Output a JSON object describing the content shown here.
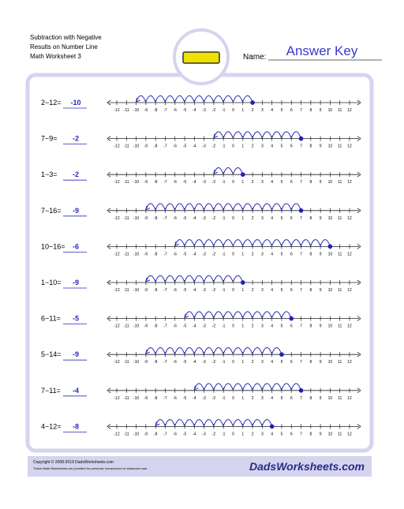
{
  "header": {
    "title_lines": [
      "Subtraction with Negative",
      "Results on Number Line",
      "Math Worksheet 3"
    ],
    "name_label": "Name:",
    "answer_key": "Answer Key"
  },
  "number_line": {
    "ticks": [
      -12,
      -11,
      -10,
      -9,
      -8,
      -7,
      -6,
      -5,
      -4,
      -3,
      -2,
      -1,
      0,
      1,
      2,
      3,
      4,
      5,
      6,
      7,
      8,
      9,
      10,
      11,
      12
    ]
  },
  "problems": [
    {
      "problem": "2−12=",
      "answer": "-10"
    },
    {
      "problem": "7−9=",
      "answer": "-2"
    },
    {
      "problem": "1−3=",
      "answer": "-2"
    },
    {
      "problem": "7−16=",
      "answer": "-9"
    },
    {
      "problem": "10−16=",
      "answer": "-6"
    },
    {
      "problem": "1−10=",
      "answer": "-9"
    },
    {
      "problem": "6−11=",
      "answer": "-5"
    },
    {
      "problem": "5−14=",
      "answer": "-9"
    },
    {
      "problem": "7−11=",
      "answer": "-4"
    },
    {
      "problem": "4−12=",
      "answer": "-8"
    }
  ],
  "footer": {
    "copyright": "Copyright © 2008-2019 DadsWorksheets.com",
    "note": "These Math Worksheets are provided for personal, homeschool or classroom use.",
    "logo": "DadsWorksheets.com"
  }
}
